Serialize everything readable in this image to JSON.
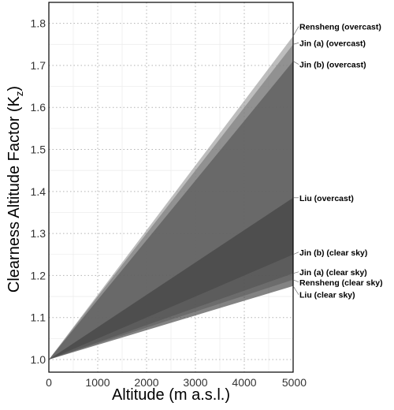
{
  "chart_data": {
    "type": "area",
    "title": "",
    "xlabel": "Altitude (m a.s.l.)",
    "ylabel": "Clearness Altitude Factor (K",
    "ylabel_sub": "z",
    "ylabel_suffix": ")",
    "xlim": [
      0,
      5000
    ],
    "ylim": [
      0.97,
      1.85
    ],
    "xticks": [
      0,
      1000,
      2000,
      3000,
      4000,
      5000
    ],
    "yticks": [
      1.0,
      1.1,
      1.2,
      1.3,
      1.4,
      1.5,
      1.6,
      1.7,
      1.8
    ],
    "grid": true,
    "legend": "none",
    "bands": [
      {
        "upper": "Rensheng (overcast)",
        "lower": "Rensheng (clear sky)",
        "color": "#9a9a9a"
      },
      {
        "upper": "Jin (a) (overcast)",
        "lower": "Jin (a) (clear sky)",
        "color": "#7a7a7a"
      },
      {
        "upper": "Jin (b) (overcast)",
        "lower": "Jin (b) (clear sky)",
        "color": "#555555"
      },
      {
        "upper": "Liu (overcast)",
        "lower": "Liu (clear sky)",
        "color": "#404040"
      }
    ],
    "series": [
      {
        "name": "Rensheng (overcast)",
        "x": [
          0,
          5000
        ],
        "y": [
          1.0,
          1.77
        ]
      },
      {
        "name": "Jin (a) (overcast)",
        "x": [
          0,
          5000
        ],
        "y": [
          1.0,
          1.75
        ]
      },
      {
        "name": "Jin (b) (overcast)",
        "x": [
          0,
          5000
        ],
        "y": [
          1.0,
          1.71
        ]
      },
      {
        "name": "Liu (overcast)",
        "x": [
          0,
          5000
        ],
        "y": [
          1.0,
          1.385
        ]
      },
      {
        "name": "Jin (b) (clear sky)",
        "x": [
          0,
          5000
        ],
        "y": [
          1.0,
          1.25
        ]
      },
      {
        "name": "Jin (a) (clear sky)",
        "x": [
          0,
          5000
        ],
        "y": [
          1.0,
          1.205
        ]
      },
      {
        "name": "Rensheng (clear sky)",
        "x": [
          0,
          5000
        ],
        "y": [
          1.0,
          1.19
        ]
      },
      {
        "name": "Liu (clear sky)",
        "x": [
          0,
          5000
        ],
        "y": [
          1.0,
          1.175
        ]
      }
    ]
  }
}
